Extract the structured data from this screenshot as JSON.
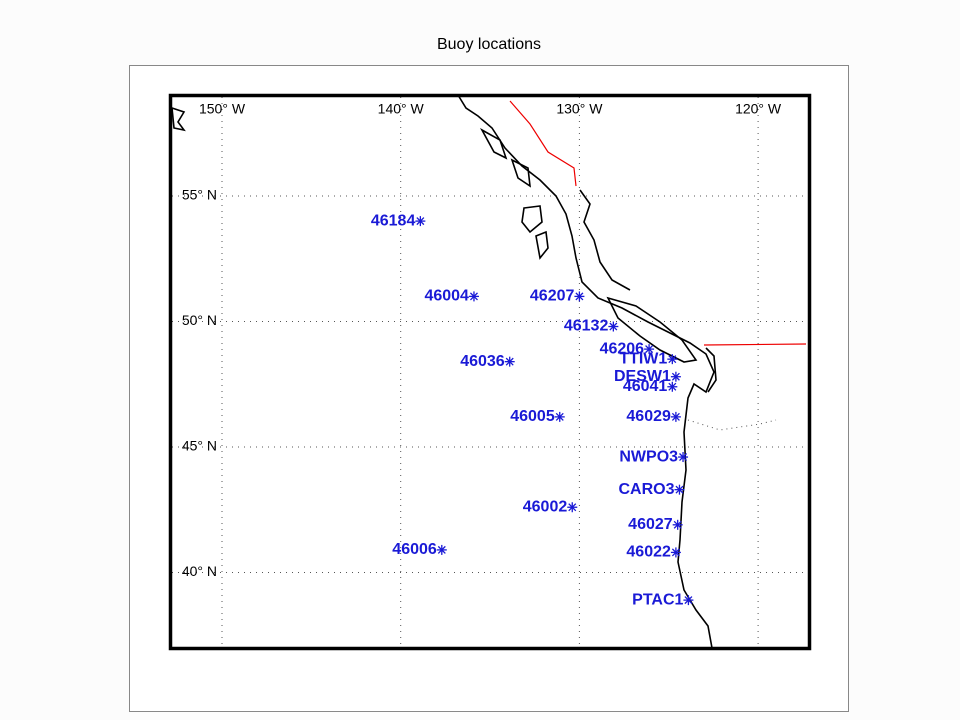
{
  "title": "Buoy locations",
  "map": {
    "xticks": [
      {
        "value": -150,
        "label": "150° W"
      },
      {
        "value": -140,
        "label": "140° W"
      },
      {
        "value": -130,
        "label": "130° W"
      },
      {
        "value": -120,
        "label": "120° W"
      }
    ],
    "yticks": [
      {
        "value": 55,
        "label": "55° N"
      },
      {
        "value": 50,
        "label": "50° N"
      },
      {
        "value": 45,
        "label": "45° N"
      },
      {
        "value": 40,
        "label": "40° N"
      }
    ],
    "buoys": [
      {
        "name": "46184",
        "lon": -138.9,
        "lat": 54.0
      },
      {
        "name": "46004",
        "lon": -135.9,
        "lat": 51.0
      },
      {
        "name": "46207",
        "lon": -130.0,
        "lat": 51.0
      },
      {
        "name": "46132",
        "lon": -128.1,
        "lat": 49.8
      },
      {
        "name": "46206",
        "lon": -126.1,
        "lat": 48.9
      },
      {
        "name": "TTIW1",
        "lon": -124.8,
        "lat": 48.5
      },
      {
        "name": "46036",
        "lon": -133.9,
        "lat": 48.4
      },
      {
        "name": "DESW1",
        "lon": -124.6,
        "lat": 47.8
      },
      {
        "name": "46041",
        "lon": -124.8,
        "lat": 47.4
      },
      {
        "name": "46005",
        "lon": -131.1,
        "lat": 46.2
      },
      {
        "name": "46029",
        "lon": -124.6,
        "lat": 46.2
      },
      {
        "name": "NWPO3",
        "lon": -124.2,
        "lat": 44.6
      },
      {
        "name": "CARO3",
        "lon": -124.4,
        "lat": 43.3
      },
      {
        "name": "46002",
        "lon": -130.4,
        "lat": 42.6
      },
      {
        "name": "46027",
        "lon": -124.5,
        "lat": 41.9
      },
      {
        "name": "46022",
        "lon": -124.6,
        "lat": 40.8
      },
      {
        "name": "46006",
        "lon": -137.7,
        "lat": 40.9
      },
      {
        "name": "PTAC1",
        "lon": -123.9,
        "lat": 38.9
      }
    ]
  }
}
